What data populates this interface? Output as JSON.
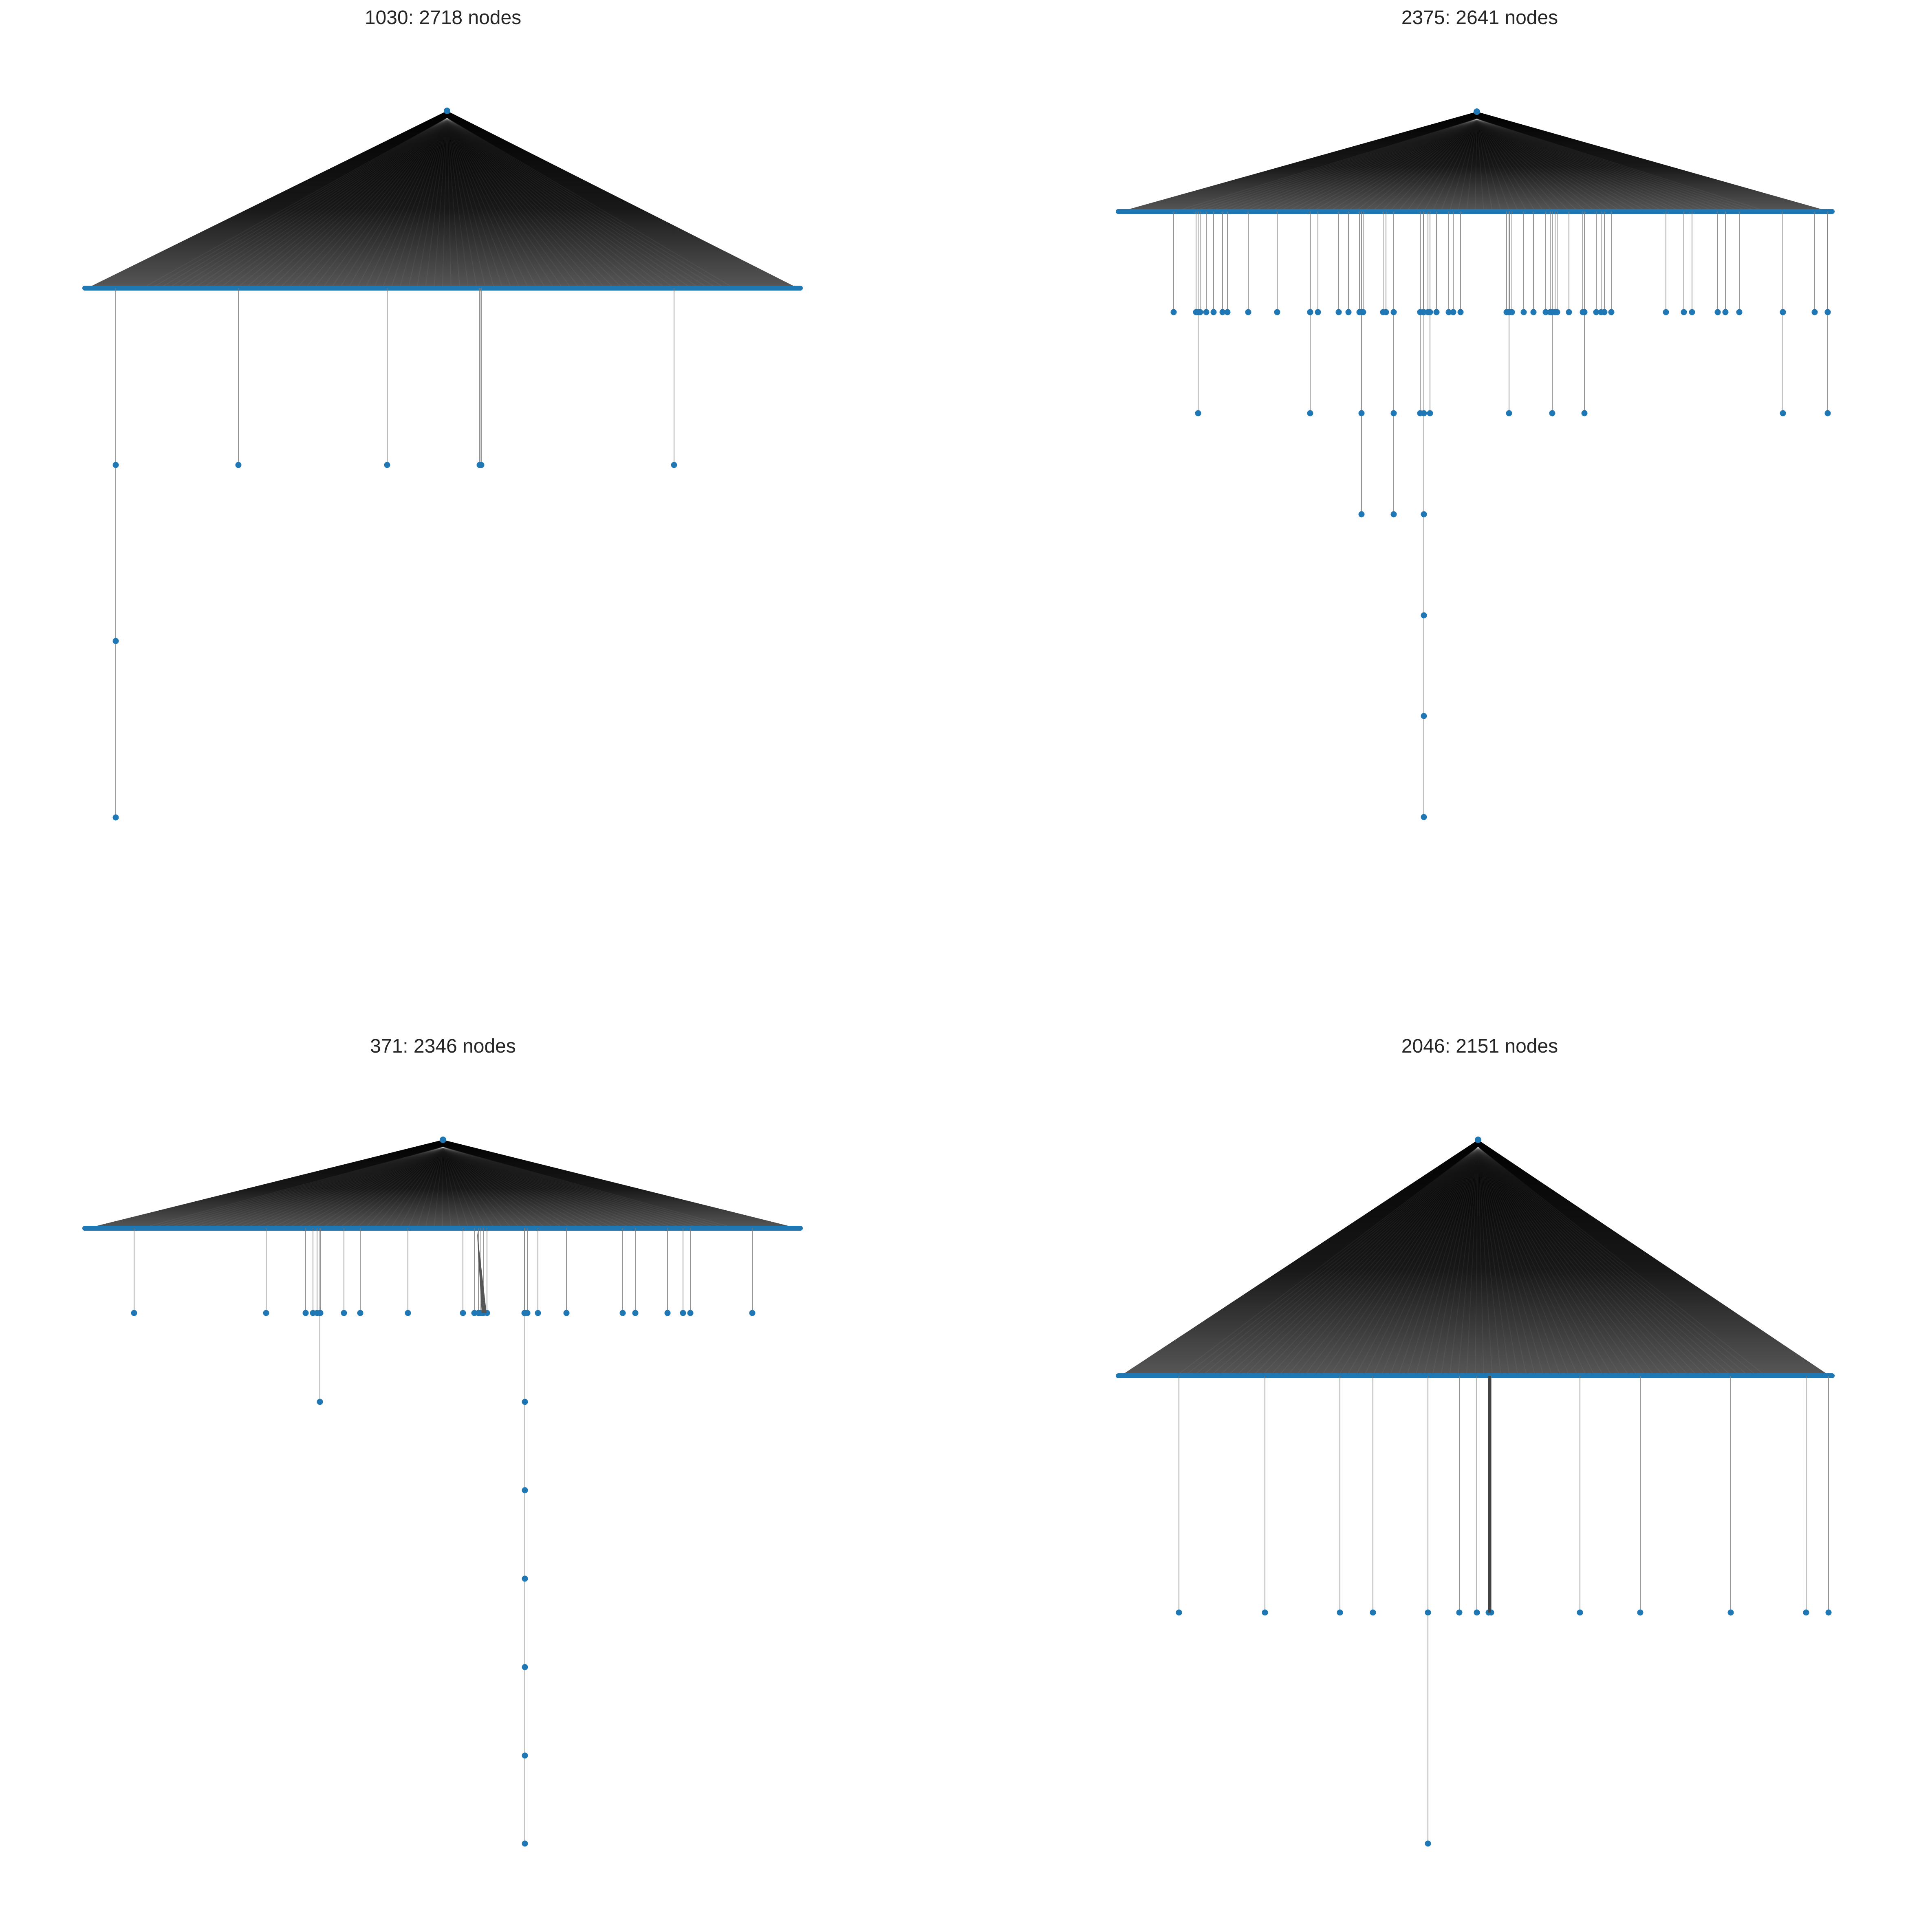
{
  "figure": {
    "node_color": "#1f77b4",
    "edge_color": "#000000",
    "background": "#ffffff",
    "panels": [
      {
        "title": "1030: 2718 nodes",
        "id": "1030",
        "node_count": 2718
      },
      {
        "title": "2375: 2641 nodes",
        "id": "2375",
        "node_count": 2641
      },
      {
        "title": "371: 2346 nodes",
        "id": "371",
        "node_count": 2346
      },
      {
        "title": "2046: 2151 nodes",
        "id": "2046",
        "node_count": 2151
      }
    ]
  }
}
